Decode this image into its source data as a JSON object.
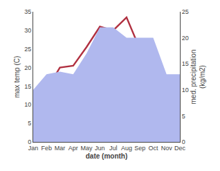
{
  "chart_data": {
    "type": "line",
    "xlabel": "date (month)",
    "ylabel": "max temp (C)",
    "y2label": "med. precipitation\n(kg/m2)",
    "categories": [
      "Jan",
      "Feb",
      "Mar",
      "Apr",
      "May",
      "Jun",
      "Jul",
      "Aug",
      "Sep",
      "Oct",
      "Nov",
      "Dec"
    ],
    "series": [
      {
        "type": "area",
        "axis": "y2",
        "color": "#b0b8ee",
        "values": [
          10.0,
          13.0,
          13.5,
          13.0,
          17.0,
          22.0,
          22.0,
          20.0,
          20.0,
          20.0,
          13.0,
          13.0
        ]
      },
      {
        "type": "line",
        "color": "#b03040",
        "values": [
          9.5,
          14.0,
          20.0,
          20.5,
          25.5,
          31.0,
          30.0,
          33.5,
          25.0,
          18.0,
          14.0,
          12.5
        ]
      }
    ],
    "ylim": [
      0,
      35
    ],
    "yticks": [
      0,
      5,
      10,
      15,
      20,
      25,
      30,
      35
    ],
    "y2lim": [
      0,
      25
    ],
    "y2ticks": [
      0,
      5,
      10,
      15,
      20,
      25
    ],
    "grid": false
  }
}
